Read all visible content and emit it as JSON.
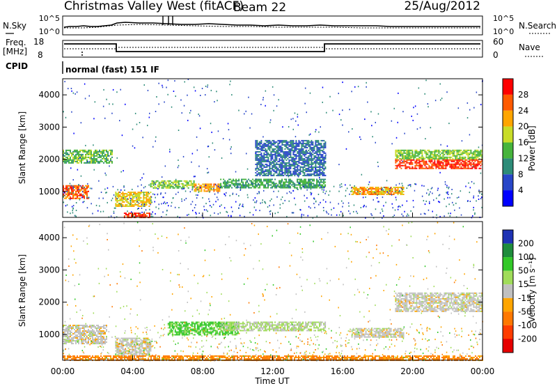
{
  "header": {
    "title": "Christmas Valley West (fitACF)",
    "beam": "Beam 22",
    "date": "25/Aug/2012"
  },
  "top_panels": {
    "nsky_label": "N.Sky",
    "nsearch_label": "N.Search",
    "noise_ticks": [
      "10^5",
      "10^0"
    ],
    "freq_label": "Freq.",
    "freq_unit": "[MHz]",
    "freq_ticks": [
      "18",
      "8"
    ],
    "nave_label": "Nave",
    "nave_ticks": [
      "60",
      "0"
    ],
    "cpid_label": "CPID",
    "cpid_value": "normal (fast) 151 IF"
  },
  "x_axis": {
    "label": "Time UT",
    "ticks": [
      "00:00",
      "04:00",
      "08:00",
      "12:00",
      "16:00",
      "20:00",
      "00:00"
    ]
  },
  "power_scale": {
    "label": "Power [dB]",
    "ticks": [
      "4",
      "8",
      "12",
      "16",
      "20",
      "24",
      "28"
    ],
    "colors": [
      "#0000ff",
      "#2846c8",
      "#2d8c78",
      "#46b43c",
      "#c8dc28",
      "#ffa500",
      "#ff5a00",
      "#ff0000"
    ]
  },
  "velocity_scale": {
    "label": "Velocity [m s⁻¹]",
    "ticks": [
      "200",
      "100",
      "50",
      "15",
      "-15",
      "-50",
      "-100",
      "-200"
    ],
    "colors": [
      "#1e32b4",
      "#1e8c3c",
      "#32c828",
      "#a0dc5a",
      "#c0c0c0",
      "#ffa500",
      "#ff7800",
      "#ff3c00",
      "#e60000"
    ]
  },
  "chart_data": [
    {
      "type": "heatmap",
      "title": "",
      "xlabel": "Time UT",
      "ylabel": "Slant Range [km]",
      "xlim": [
        0,
        24
      ],
      "ylim": [
        200,
        4500
      ],
      "yticks": [
        "1000",
        "2000",
        "3000",
        "4000"
      ],
      "colorbar": "Power [dB]",
      "features": [
        {
          "t": [
            0.0,
            1.5
          ],
          "r": [
            800,
            1200
          ],
          "dB": 26
        },
        {
          "t": [
            0.0,
            2.8
          ],
          "r": [
            1900,
            2300
          ],
          "dB": 14
        },
        {
          "t": [
            3.0,
            5.0
          ],
          "r": [
            550,
            1000
          ],
          "dB": 20
        },
        {
          "t": [
            3.5,
            5.0
          ],
          "r": [
            200,
            350
          ],
          "dB": 28
        },
        {
          "t": [
            5.0,
            7.5
          ],
          "r": [
            1100,
            1350
          ],
          "dB": 16
        },
        {
          "t": [
            7.5,
            9.0
          ],
          "r": [
            1000,
            1250
          ],
          "dB": 22
        },
        {
          "t": [
            9.0,
            15.0
          ],
          "r": [
            1100,
            1400
          ],
          "dB": 12
        },
        {
          "t": [
            11.0,
            15.0
          ],
          "r": [
            1500,
            2600
          ],
          "dB": 8
        },
        {
          "t": [
            16.5,
            19.5
          ],
          "r": [
            900,
            1150
          ],
          "dB": 22
        },
        {
          "t": [
            19.0,
            24.0
          ],
          "r": [
            1700,
            2000
          ],
          "dB": 28
        },
        {
          "t": [
            19.0,
            24.0
          ],
          "r": [
            2000,
            2300
          ],
          "dB": 16
        }
      ]
    },
    {
      "type": "heatmap",
      "title": "",
      "xlabel": "Time UT",
      "ylabel": "Slant Range [km]",
      "xlim": [
        0,
        24
      ],
      "ylim": [
        200,
        4500
      ],
      "yticks": [
        "1000",
        "2000",
        "3000",
        "4000"
      ],
      "colorbar": "Velocity [m s⁻¹]",
      "features": [
        {
          "t": [
            0.0,
            2.5
          ],
          "r": [
            700,
            1300
          ],
          "v": 0
        },
        {
          "t": [
            3.0,
            5.0
          ],
          "r": [
            300,
            900
          ],
          "v": 0
        },
        {
          "t": [
            6.0,
            10.0
          ],
          "r": [
            1000,
            1400
          ],
          "v": 60
        },
        {
          "t": [
            9.0,
            15.0
          ],
          "r": [
            1100,
            1400
          ],
          "v": 20
        },
        {
          "t": [
            16.5,
            19.5
          ],
          "r": [
            900,
            1200
          ],
          "v": 0
        },
        {
          "t": [
            19.0,
            24.0
          ],
          "r": [
            1700,
            2300
          ],
          "v": 0
        },
        {
          "t": [
            0.0,
            24.0
          ],
          "r": [
            200,
            350
          ],
          "v": -60
        }
      ]
    }
  ]
}
